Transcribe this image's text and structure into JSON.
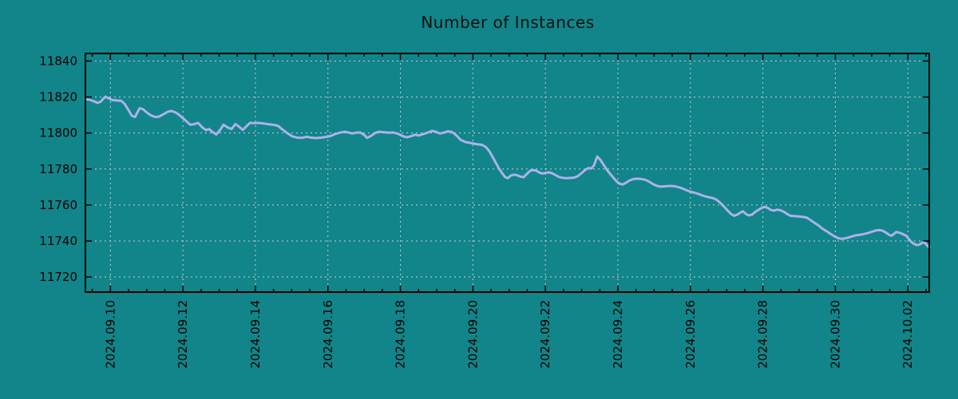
{
  "page": {
    "background_color": "#118589",
    "text_color": "#000000"
  },
  "chart_data": {
    "type": "line",
    "title": "Number of Instances",
    "grid": {
      "show": true,
      "color": "#c9cfcf",
      "style": "dashed"
    },
    "legend": "none",
    "x_axis": {
      "kind": "date",
      "tick_labels": [
        "2024.09.10",
        "2024.09.12",
        "2024.09.14",
        "2024.09.16",
        "2024.09.18",
        "2024.09.20",
        "2024.09.22",
        "2024.09.24",
        "2024.09.26",
        "2024.09.28",
        "2024.09.30",
        "2024.10.02"
      ],
      "tick_day_offsets": [
        0,
        2,
        4,
        6,
        8,
        10,
        12,
        14,
        16,
        18,
        20,
        22
      ],
      "minor_tick_step_days": 0.5,
      "range_days": [
        -0.69,
        22.59
      ],
      "label_rotation_deg": -90
    },
    "y_axis": {
      "tick_labels": [
        "11720",
        "11740",
        "11760",
        "11780",
        "11800",
        "11820",
        "11840"
      ],
      "tick_values": [
        11720,
        11740,
        11760,
        11780,
        11800,
        11820,
        11840
      ],
      "range": [
        11711.6,
        11844.2
      ]
    },
    "series": [
      {
        "name": "number-of-instances",
        "color": "#adb1ea",
        "points": [
          [
            -0.69,
            11818.8
          ],
          [
            -0.58,
            11818.5
          ],
          [
            -0.45,
            11817.6
          ],
          [
            -0.36,
            11816.7
          ],
          [
            -0.27,
            11817.4
          ],
          [
            -0.14,
            11820.2
          ],
          [
            -0.05,
            11819.3
          ],
          [
            0.04,
            11818.4
          ],
          [
            0.17,
            11818.1
          ],
          [
            0.3,
            11817.9
          ],
          [
            0.39,
            11816.2
          ],
          [
            0.48,
            11813.4
          ],
          [
            0.59,
            11809.6
          ],
          [
            0.68,
            11808.9
          ],
          [
            0.74,
            11811.3
          ],
          [
            0.81,
            11813.8
          ],
          [
            0.9,
            11813.2
          ],
          [
            1.01,
            11811.3
          ],
          [
            1.12,
            11809.8
          ],
          [
            1.23,
            11808.9
          ],
          [
            1.34,
            11809.1
          ],
          [
            1.47,
            11810.5
          ],
          [
            1.58,
            11811.8
          ],
          [
            1.67,
            11812.3
          ],
          [
            1.78,
            11811.6
          ],
          [
            1.89,
            11810.2
          ],
          [
            2.0,
            11808.3
          ],
          [
            2.11,
            11806.3
          ],
          [
            2.2,
            11804.6
          ],
          [
            2.31,
            11804.9
          ],
          [
            2.42,
            11805.6
          ],
          [
            2.53,
            11803.2
          ],
          [
            2.64,
            11801.6
          ],
          [
            2.72,
            11802.2
          ],
          [
            2.83,
            11800.4
          ],
          [
            2.92,
            11799.2
          ],
          [
            3.03,
            11801.8
          ],
          [
            3.12,
            11804.6
          ],
          [
            3.23,
            11803.1
          ],
          [
            3.34,
            11802.2
          ],
          [
            3.45,
            11805.0
          ],
          [
            3.56,
            11803.3
          ],
          [
            3.65,
            11801.7
          ],
          [
            3.76,
            11803.9
          ],
          [
            3.85,
            11805.6
          ],
          [
            3.96,
            11805.5
          ],
          [
            4.09,
            11805.6
          ],
          [
            4.22,
            11805.3
          ],
          [
            4.35,
            11804.9
          ],
          [
            4.48,
            11804.6
          ],
          [
            4.62,
            11804.0
          ],
          [
            4.75,
            11801.9
          ],
          [
            4.88,
            11799.9
          ],
          [
            5.01,
            11798.2
          ],
          [
            5.15,
            11797.4
          ],
          [
            5.28,
            11797.3
          ],
          [
            5.41,
            11797.9
          ],
          [
            5.54,
            11797.4
          ],
          [
            5.67,
            11797.2
          ],
          [
            5.81,
            11797.4
          ],
          [
            5.94,
            11797.8
          ],
          [
            6.07,
            11798.3
          ],
          [
            6.2,
            11799.4
          ],
          [
            6.33,
            11800.2
          ],
          [
            6.47,
            11800.7
          ],
          [
            6.58,
            11800.2
          ],
          [
            6.67,
            11799.7
          ],
          [
            6.78,
            11800.2
          ],
          [
            6.89,
            11800.3
          ],
          [
            7.0,
            11798.9
          ],
          [
            7.08,
            11797.3
          ],
          [
            7.19,
            11798.4
          ],
          [
            7.3,
            11800.0
          ],
          [
            7.41,
            11800.7
          ],
          [
            7.55,
            11800.4
          ],
          [
            7.68,
            11800.2
          ],
          [
            7.81,
            11800.3
          ],
          [
            7.94,
            11799.5
          ],
          [
            8.07,
            11798.2
          ],
          [
            8.18,
            11797.6
          ],
          [
            8.29,
            11798.2
          ],
          [
            8.4,
            11799.0
          ],
          [
            8.51,
            11798.6
          ],
          [
            8.62,
            11799.3
          ],
          [
            8.76,
            11800.3
          ],
          [
            8.87,
            11801.2
          ],
          [
            8.98,
            11800.7
          ],
          [
            9.09,
            11799.7
          ],
          [
            9.2,
            11800.2
          ],
          [
            9.31,
            11800.9
          ],
          [
            9.42,
            11800.6
          ],
          [
            9.53,
            11798.9
          ],
          [
            9.66,
            11796.2
          ],
          [
            9.79,
            11795.0
          ],
          [
            9.95,
            11794.4
          ],
          [
            10.1,
            11793.8
          ],
          [
            10.25,
            11793.4
          ],
          [
            10.36,
            11792.2
          ],
          [
            10.45,
            11790.0
          ],
          [
            10.54,
            11786.8
          ],
          [
            10.63,
            11783.5
          ],
          [
            10.72,
            11780.2
          ],
          [
            10.81,
            11777.6
          ],
          [
            10.89,
            11775.5
          ],
          [
            10.96,
            11774.9
          ],
          [
            11.05,
            11776.4
          ],
          [
            11.14,
            11776.9
          ],
          [
            11.22,
            11776.5
          ],
          [
            11.31,
            11775.8
          ],
          [
            11.4,
            11775.4
          ],
          [
            11.49,
            11777.3
          ],
          [
            11.58,
            11779.0
          ],
          [
            11.66,
            11779.4
          ],
          [
            11.75,
            11779.1
          ],
          [
            11.84,
            11777.9
          ],
          [
            11.93,
            11777.5
          ],
          [
            12.02,
            11777.9
          ],
          [
            12.1,
            11778.1
          ],
          [
            12.19,
            11777.6
          ],
          [
            12.28,
            11776.6
          ],
          [
            12.37,
            11775.6
          ],
          [
            12.46,
            11775.1
          ],
          [
            12.57,
            11774.9
          ],
          [
            12.68,
            11775.0
          ],
          [
            12.79,
            11775.2
          ],
          [
            12.9,
            11776.1
          ],
          [
            13.01,
            11777.9
          ],
          [
            13.1,
            11779.5
          ],
          [
            13.18,
            11780.5
          ],
          [
            13.27,
            11780.3
          ],
          [
            13.34,
            11782.0
          ],
          [
            13.43,
            11786.9
          ],
          [
            13.51,
            11785.3
          ],
          [
            13.6,
            11782.5
          ],
          [
            13.69,
            11779.7
          ],
          [
            13.78,
            11777.4
          ],
          [
            13.87,
            11775.3
          ],
          [
            13.96,
            11773.2
          ],
          [
            14.04,
            11771.9
          ],
          [
            14.13,
            11771.4
          ],
          [
            14.22,
            11772.3
          ],
          [
            14.31,
            11773.5
          ],
          [
            14.42,
            11774.4
          ],
          [
            14.53,
            11774.6
          ],
          [
            14.64,
            11774.5
          ],
          [
            14.75,
            11774.0
          ],
          [
            14.86,
            11773.0
          ],
          [
            14.97,
            11771.6
          ],
          [
            15.08,
            11770.6
          ],
          [
            15.19,
            11770.2
          ],
          [
            15.32,
            11770.4
          ],
          [
            15.45,
            11770.6
          ],
          [
            15.58,
            11770.4
          ],
          [
            15.72,
            11769.6
          ],
          [
            15.85,
            11768.6
          ],
          [
            15.98,
            11767.5
          ],
          [
            16.11,
            11766.8
          ],
          [
            16.24,
            11766.0
          ],
          [
            16.37,
            11765.0
          ],
          [
            16.51,
            11764.3
          ],
          [
            16.62,
            11763.9
          ],
          [
            16.73,
            11762.8
          ],
          [
            16.84,
            11760.9
          ],
          [
            16.95,
            11758.6
          ],
          [
            17.04,
            11756.6
          ],
          [
            17.12,
            11755.0
          ],
          [
            17.21,
            11754.0
          ],
          [
            17.3,
            11754.7
          ],
          [
            17.39,
            11755.9
          ],
          [
            17.45,
            11756.5
          ],
          [
            17.54,
            11754.9
          ],
          [
            17.61,
            11754.2
          ],
          [
            17.7,
            11754.6
          ],
          [
            17.78,
            11756.0
          ],
          [
            17.87,
            11757.2
          ],
          [
            17.96,
            11758.3
          ],
          [
            18.05,
            11759.0
          ],
          [
            18.14,
            11758.3
          ],
          [
            18.22,
            11757.2
          ],
          [
            18.31,
            11756.9
          ],
          [
            18.4,
            11757.4
          ],
          [
            18.49,
            11757.0
          ],
          [
            18.58,
            11756.2
          ],
          [
            18.67,
            11755.0
          ],
          [
            18.76,
            11754.0
          ],
          [
            18.87,
            11753.8
          ],
          [
            18.98,
            11753.7
          ],
          [
            19.09,
            11753.4
          ],
          [
            19.2,
            11753.0
          ],
          [
            19.28,
            11752.1
          ],
          [
            19.37,
            11750.8
          ],
          [
            19.46,
            11749.6
          ],
          [
            19.55,
            11748.4
          ],
          [
            19.64,
            11746.8
          ],
          [
            19.72,
            11745.9
          ],
          [
            19.81,
            11744.7
          ],
          [
            19.9,
            11743.5
          ],
          [
            19.99,
            11742.4
          ],
          [
            20.08,
            11741.5
          ],
          [
            20.17,
            11741.2
          ],
          [
            20.25,
            11741.4
          ],
          [
            20.36,
            11741.9
          ],
          [
            20.47,
            11742.6
          ],
          [
            20.58,
            11743.2
          ],
          [
            20.69,
            11743.5
          ],
          [
            20.8,
            11743.9
          ],
          [
            20.91,
            11744.5
          ],
          [
            21.02,
            11745.2
          ],
          [
            21.13,
            11745.9
          ],
          [
            21.22,
            11746.1
          ],
          [
            21.31,
            11745.6
          ],
          [
            21.4,
            11744.6
          ],
          [
            21.49,
            11743.3
          ],
          [
            21.55,
            11742.9
          ],
          [
            21.62,
            11744.0
          ],
          [
            21.68,
            11745.0
          ],
          [
            21.77,
            11744.6
          ],
          [
            21.86,
            11743.8
          ],
          [
            21.95,
            11742.9
          ],
          [
            22.02,
            11741.3
          ],
          [
            22.08,
            11739.8
          ],
          [
            22.15,
            11738.6
          ],
          [
            22.21,
            11738.0
          ],
          [
            22.28,
            11737.7
          ],
          [
            22.35,
            11738.4
          ],
          [
            22.41,
            11739.2
          ],
          [
            22.48,
            11738.8
          ],
          [
            22.54,
            11737.3
          ],
          [
            22.59,
            11736.5
          ]
        ]
      }
    ],
    "plot_style": {
      "line_width": 3,
      "border_color": "#000000",
      "tick_color": "#000000",
      "label_color": "#000000",
      "tick_font_size": 15,
      "title_font_size": 20
    }
  }
}
